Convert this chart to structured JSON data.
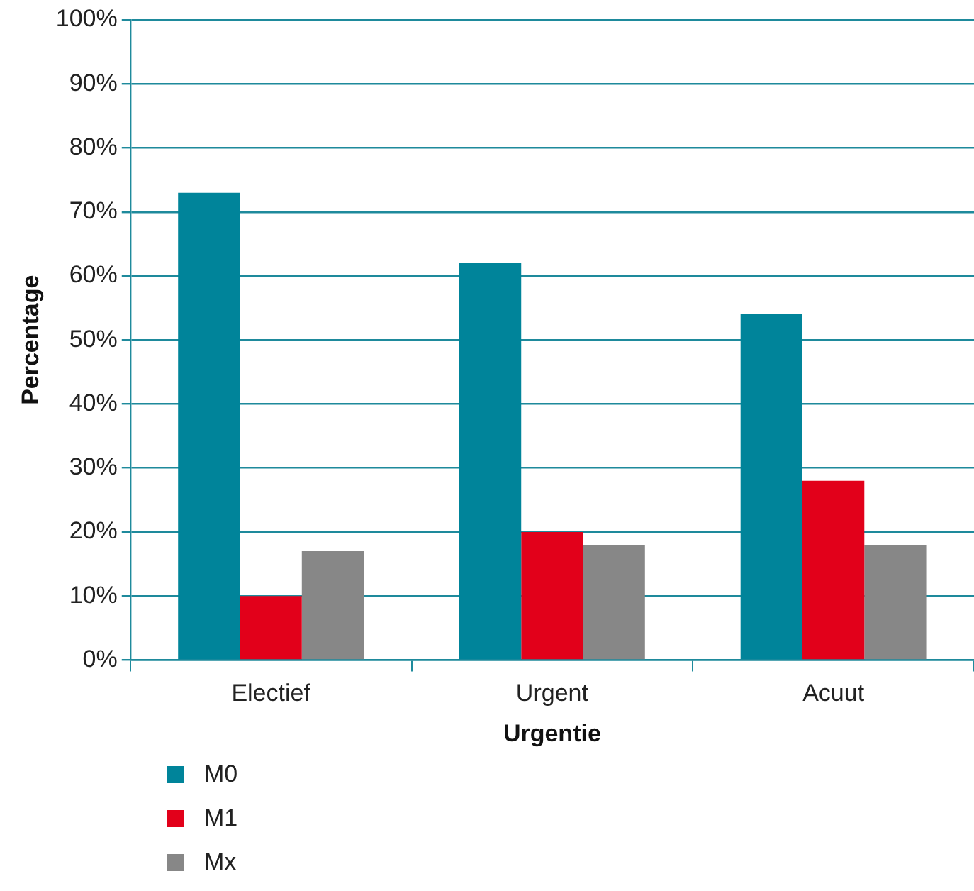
{
  "chart_data": {
    "type": "bar",
    "xlabel": "Urgentie",
    "ylabel": "Percentage",
    "categories": [
      "Electief",
      "Urgent",
      "Acuut"
    ],
    "series": [
      {
        "name": "M0",
        "color": "#00849a",
        "values": [
          73,
          62,
          54
        ]
      },
      {
        "name": "M1",
        "color": "#e2001a",
        "values": [
          10,
          20,
          28
        ]
      },
      {
        "name": "Mx",
        "color": "#878787",
        "values": [
          17,
          18,
          18
        ]
      }
    ],
    "ylim": [
      0,
      100
    ],
    "yticks": [
      {
        "value": 0,
        "label": "0%"
      },
      {
        "value": 10,
        "label": "10%"
      },
      {
        "value": 20,
        "label": "20%"
      },
      {
        "value": 30,
        "label": "30%"
      },
      {
        "value": 40,
        "label": "40%"
      },
      {
        "value": 50,
        "label": "50%"
      },
      {
        "value": 60,
        "label": "60%"
      },
      {
        "value": 70,
        "label": "70%"
      },
      {
        "value": 80,
        "label": "80%"
      },
      {
        "value": 90,
        "label": "90%"
      },
      {
        "value": 100,
        "label": "100%"
      }
    ],
    "grid": "y",
    "legend": "bottom left"
  }
}
